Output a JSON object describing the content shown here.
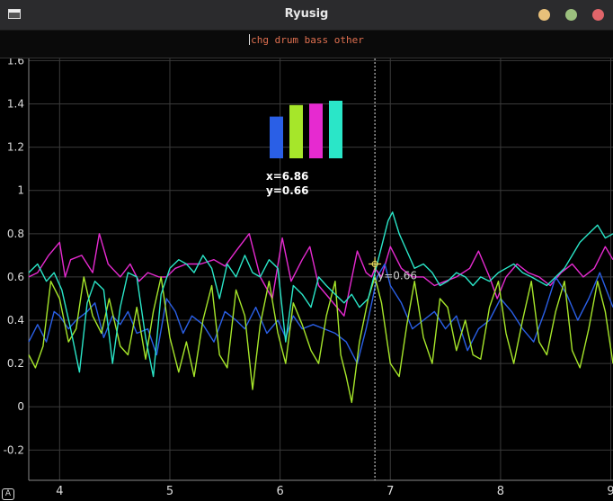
{
  "window": {
    "title": "Ryusig",
    "buttons": [
      {
        "name": "minimize",
        "color": "#e8c07a"
      },
      {
        "name": "maximize",
        "color": "#9cc07e"
      },
      {
        "name": "close",
        "color": "#e0656a"
      }
    ]
  },
  "command": {
    "text": "chg drum bass other"
  },
  "badge": "A",
  "cursor": {
    "x": 6.86,
    "y": 0.66,
    "x_label": "x=6.86",
    "y_label": "y=0.66",
    "value_label": "y=0.66"
  },
  "colors": {
    "background": "#000000",
    "grid": "#3a3a3a",
    "axis_text": "#dddddd",
    "cursor": "#f0e060"
  },
  "chart_data": {
    "type": "line",
    "xlim": [
      3.72,
      9.02
    ],
    "ylim": [
      -0.34,
      1.61
    ],
    "x_ticks": [
      4,
      5,
      6,
      7,
      8,
      9
    ],
    "y_ticks": [
      -0.2,
      0,
      0.2,
      0.4,
      0.6,
      0.8,
      1,
      1.2,
      1.4,
      1.6
    ],
    "grid": true,
    "legend": {
      "placement": "top-center",
      "style": "bars",
      "entries": [
        {
          "color": "#2a5fe6",
          "value": 0.29
        },
        {
          "color": "#a6e62a",
          "value": 0.37
        },
        {
          "color": "#e62ad0",
          "value": 0.38
        },
        {
          "color": "#2ae6c8",
          "value": 0.4
        }
      ]
    },
    "series": [
      {
        "color": "#e62ad0",
        "x": [
          3.72,
          3.8,
          3.9,
          4.0,
          4.05,
          4.1,
          4.2,
          4.3,
          4.36,
          4.44,
          4.55,
          4.64,
          4.72,
          4.8,
          4.9,
          4.97,
          5.05,
          5.15,
          5.28,
          5.4,
          5.5,
          5.6,
          5.72,
          5.82,
          5.93,
          6.02,
          6.1,
          6.2,
          6.27,
          6.35,
          6.45,
          6.58,
          6.7,
          6.78,
          6.83,
          6.86,
          6.92,
          7.0,
          7.1,
          7.2,
          7.3,
          7.4,
          7.5,
          7.6,
          7.72,
          7.8,
          7.9,
          7.97,
          8.05,
          8.15,
          8.25,
          8.35,
          8.45,
          8.55,
          8.65,
          8.75,
          8.85,
          8.95,
          9.02
        ],
        "y": [
          0.6,
          0.62,
          0.7,
          0.76,
          0.6,
          0.68,
          0.7,
          0.62,
          0.8,
          0.66,
          0.6,
          0.66,
          0.58,
          0.62,
          0.6,
          0.6,
          0.64,
          0.66,
          0.66,
          0.68,
          0.65,
          0.72,
          0.8,
          0.6,
          0.5,
          0.78,
          0.58,
          0.68,
          0.74,
          0.56,
          0.5,
          0.42,
          0.72,
          0.62,
          0.6,
          0.64,
          0.6,
          0.74,
          0.64,
          0.6,
          0.6,
          0.56,
          0.58,
          0.6,
          0.64,
          0.72,
          0.6,
          0.5,
          0.6,
          0.66,
          0.62,
          0.6,
          0.56,
          0.62,
          0.66,
          0.6,
          0.64,
          0.74,
          0.68
        ]
      },
      {
        "color": "#2a5fe6",
        "x": [
          3.72,
          3.8,
          3.88,
          3.95,
          4.0,
          4.08,
          4.15,
          4.25,
          4.32,
          4.4,
          4.48,
          4.55,
          4.62,
          4.7,
          4.8,
          4.88,
          4.97,
          5.05,
          5.12,
          5.2,
          5.3,
          5.4,
          5.5,
          5.6,
          5.68,
          5.78,
          5.88,
          5.98,
          6.05,
          6.12,
          6.2,
          6.3,
          6.4,
          6.5,
          6.6,
          6.7,
          6.78,
          6.84,
          6.88,
          6.95,
          7.0,
          7.1,
          7.2,
          7.3,
          7.4,
          7.5,
          7.6,
          7.7,
          7.8,
          7.9,
          8.0,
          8.1,
          8.2,
          8.3,
          8.4,
          8.5,
          8.6,
          8.7,
          8.8,
          8.9,
          9.02
        ],
        "y": [
          0.3,
          0.38,
          0.3,
          0.44,
          0.42,
          0.36,
          0.4,
          0.44,
          0.48,
          0.32,
          0.42,
          0.38,
          0.44,
          0.34,
          0.36,
          0.24,
          0.5,
          0.44,
          0.34,
          0.42,
          0.38,
          0.3,
          0.44,
          0.4,
          0.36,
          0.46,
          0.34,
          0.4,
          0.32,
          0.42,
          0.36,
          0.38,
          0.36,
          0.34,
          0.3,
          0.2,
          0.36,
          0.5,
          0.6,
          0.66,
          0.56,
          0.48,
          0.36,
          0.4,
          0.44,
          0.36,
          0.42,
          0.26,
          0.36,
          0.4,
          0.5,
          0.44,
          0.36,
          0.3,
          0.44,
          0.6,
          0.52,
          0.4,
          0.5,
          0.62,
          0.46
        ]
      },
      {
        "color": "#a6e62a",
        "x": [
          3.72,
          3.78,
          3.85,
          3.92,
          4.0,
          4.08,
          4.15,
          4.22,
          4.3,
          4.38,
          4.45,
          4.55,
          4.62,
          4.7,
          4.78,
          4.85,
          4.92,
          5.0,
          5.08,
          5.15,
          5.22,
          5.3,
          5.38,
          5.45,
          5.52,
          5.6,
          5.68,
          5.75,
          5.82,
          5.9,
          5.98,
          6.05,
          6.12,
          6.2,
          6.28,
          6.35,
          6.42,
          6.5,
          6.55,
          6.6,
          6.65,
          6.72,
          6.8,
          6.86,
          6.92,
          7.0,
          7.08,
          7.15,
          7.22,
          7.3,
          7.38,
          7.45,
          7.52,
          7.6,
          7.68,
          7.75,
          7.82,
          7.9,
          7.98,
          8.05,
          8.12,
          8.2,
          8.28,
          8.35,
          8.42,
          8.5,
          8.58,
          8.65,
          8.72,
          8.8,
          8.88,
          8.95,
          9.02
        ],
        "y": [
          0.24,
          0.18,
          0.28,
          0.58,
          0.5,
          0.3,
          0.36,
          0.6,
          0.42,
          0.34,
          0.5,
          0.28,
          0.24,
          0.46,
          0.22,
          0.44,
          0.6,
          0.32,
          0.16,
          0.3,
          0.14,
          0.4,
          0.56,
          0.24,
          0.18,
          0.54,
          0.42,
          0.08,
          0.38,
          0.58,
          0.34,
          0.2,
          0.48,
          0.38,
          0.26,
          0.2,
          0.42,
          0.58,
          0.24,
          0.14,
          0.02,
          0.3,
          0.5,
          0.6,
          0.48,
          0.2,
          0.14,
          0.38,
          0.58,
          0.32,
          0.2,
          0.5,
          0.46,
          0.26,
          0.4,
          0.24,
          0.22,
          0.46,
          0.58,
          0.34,
          0.2,
          0.4,
          0.58,
          0.3,
          0.24,
          0.44,
          0.58,
          0.26,
          0.18,
          0.36,
          0.58,
          0.44,
          0.2
        ]
      },
      {
        "color": "#2ae6c8",
        "x": [
          3.72,
          3.8,
          3.88,
          3.95,
          4.02,
          4.1,
          4.18,
          4.25,
          4.32,
          4.4,
          4.48,
          4.55,
          4.62,
          4.7,
          4.78,
          4.85,
          4.92,
          5.0,
          5.08,
          5.15,
          5.22,
          5.3,
          5.38,
          5.45,
          5.52,
          5.6,
          5.68,
          5.75,
          5.82,
          5.9,
          5.98,
          6.05,
          6.12,
          6.2,
          6.28,
          6.35,
          6.42,
          6.5,
          6.58,
          6.65,
          6.72,
          6.8,
          6.86,
          6.92,
          6.98,
          7.02,
          7.08,
          7.15,
          7.22,
          7.3,
          7.38,
          7.45,
          7.52,
          7.6,
          7.68,
          7.75,
          7.82,
          7.9,
          7.98,
          8.05,
          8.12,
          8.2,
          8.28,
          8.35,
          8.42,
          8.5,
          8.58,
          8.65,
          8.72,
          8.8,
          8.88,
          8.95,
          9.02
        ],
        "y": [
          0.62,
          0.66,
          0.58,
          0.62,
          0.54,
          0.36,
          0.16,
          0.48,
          0.58,
          0.54,
          0.2,
          0.46,
          0.62,
          0.6,
          0.32,
          0.14,
          0.52,
          0.64,
          0.68,
          0.66,
          0.62,
          0.7,
          0.64,
          0.5,
          0.66,
          0.6,
          0.7,
          0.62,
          0.6,
          0.68,
          0.64,
          0.3,
          0.56,
          0.52,
          0.46,
          0.6,
          0.56,
          0.52,
          0.48,
          0.52,
          0.46,
          0.5,
          0.62,
          0.74,
          0.86,
          0.9,
          0.8,
          0.72,
          0.64,
          0.66,
          0.62,
          0.56,
          0.58,
          0.62,
          0.6,
          0.56,
          0.6,
          0.58,
          0.62,
          0.64,
          0.66,
          0.62,
          0.6,
          0.58,
          0.56,
          0.6,
          0.64,
          0.7,
          0.76,
          0.8,
          0.84,
          0.78,
          0.8
        ]
      }
    ]
  }
}
